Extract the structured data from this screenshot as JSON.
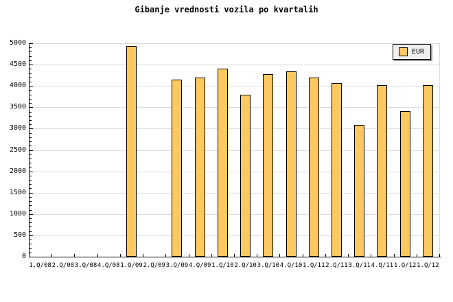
{
  "chart_data": {
    "type": "bar",
    "title": "Gibanje vrednosti vozila po kvartalih",
    "categories": [
      "1.Q/08",
      "2.Q/08",
      "3.Q/08",
      "4.Q/08",
      "1.Q/09",
      "2.Q/09",
      "3.Q/09",
      "4.Q/09",
      "1.Q/10",
      "2.Q/10",
      "3.Q/10",
      "4.Q/10",
      "1.Q/11",
      "2.Q/11",
      "3.Q/11",
      "4.Q/11",
      "1.Q/12",
      "1.Q/12"
    ],
    "series": [
      {
        "name": "EUR",
        "values": [
          null,
          null,
          null,
          null,
          4940,
          null,
          4140,
          4200,
          4410,
          3800,
          4280,
          4340,
          4190,
          4070,
          3080,
          4020,
          3410,
          4020
        ]
      }
    ],
    "ylabel": "",
    "xlabel": "",
    "ylim": [
      0,
      5000
    ],
    "ytick_major": 500,
    "ytick_minor": 100,
    "grid": "horizontal",
    "legend_position": "top-right",
    "colors": {
      "bar_fill": "#fcc860",
      "bar_border": "#000000",
      "grid": "#dcdcdc",
      "axis": "#000000",
      "legend_fill": "#f0f0f0"
    }
  }
}
